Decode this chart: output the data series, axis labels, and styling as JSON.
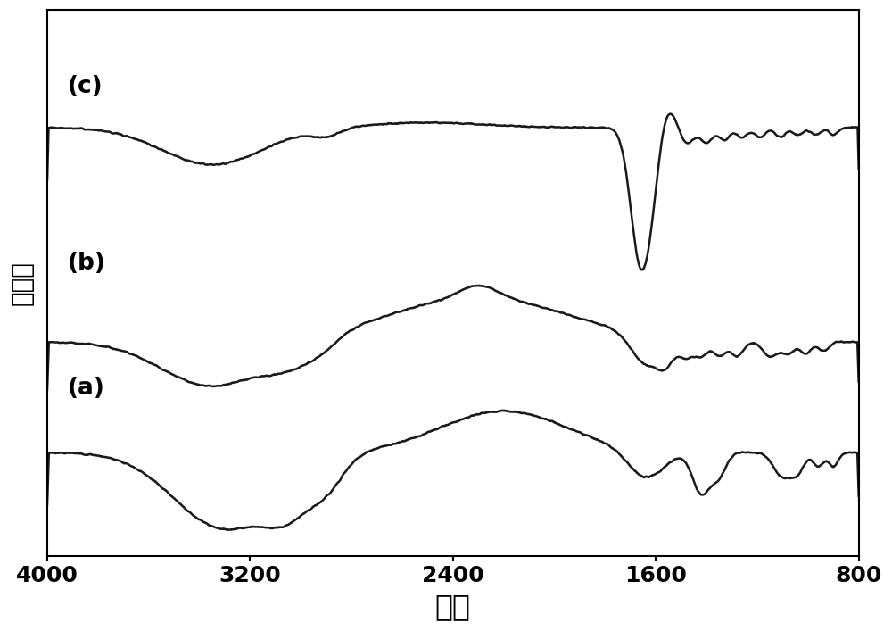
{
  "xlabel": "波长",
  "ylabel": "透过率",
  "xlabel_fontsize": 24,
  "ylabel_fontsize": 20,
  "xlim": [
    4000,
    800
  ],
  "background_color": "#ffffff",
  "line_color": "#1a1a1a",
  "label_a": "(a)",
  "label_b": "(b)",
  "label_c": "(c)",
  "tick_fontsize": 18,
  "xticks": [
    4000,
    3200,
    2400,
    1600,
    800
  ],
  "line_width": 1.8
}
